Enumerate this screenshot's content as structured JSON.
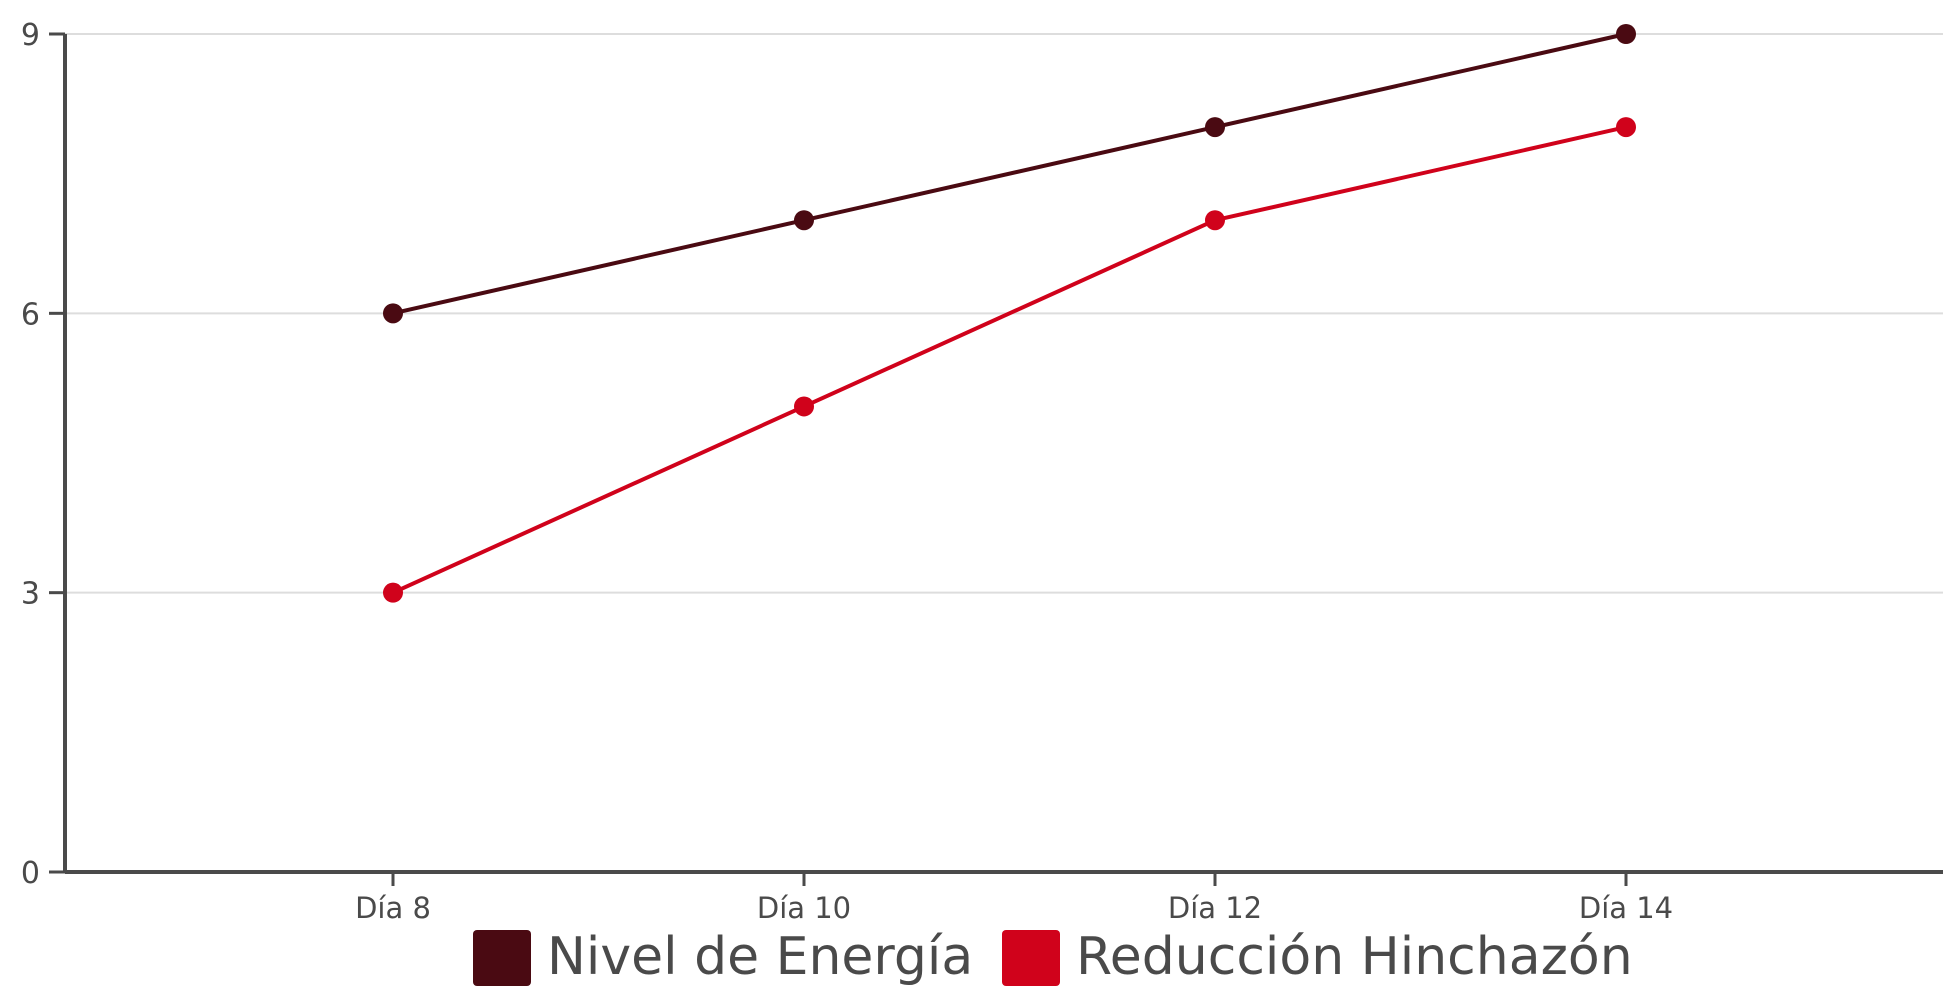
{
  "chart_data": {
    "type": "line",
    "title": "",
    "xlabel": "",
    "ylabel": "",
    "categories": [
      "Día 8",
      "Día 10",
      "Día 12",
      "Día 14"
    ],
    "series": [
      {
        "name": "Nivel de Energía",
        "values": [
          6,
          7,
          8,
          9
        ],
        "color": "#4a0a12"
      },
      {
        "name": "Reducción Hinchazón",
        "values": [
          3,
          5,
          7,
          8
        ],
        "color": "#d0021b"
      }
    ],
    "ylim": [
      0,
      9
    ],
    "yticks": [
      0,
      3,
      6,
      9
    ],
    "grid": true,
    "legend_position": "bottom-center",
    "colors": {
      "axis": "#4a4a4a",
      "grid": "#dddddd",
      "text": "#4a4a4a"
    }
  }
}
